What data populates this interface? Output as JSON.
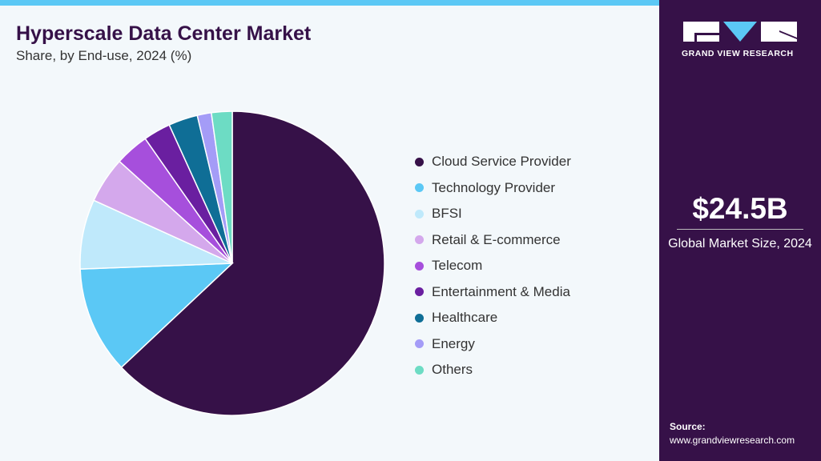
{
  "header": {
    "title": "Hyperscale Data Center Market",
    "subtitle": "Share, by End-use, 2024 (%)"
  },
  "chart_data": {
    "type": "pie",
    "title": "Hyperscale Data Center Market",
    "subtitle": "Share, by End-use, 2024 (%)",
    "legend_position": "right",
    "categories": [
      "Cloud Service Provider",
      "Technology Provider",
      "BFSI",
      "Retail & E-commerce",
      "Telecom",
      "Entertainment & Media",
      "Healthcare",
      "Energy",
      "Others"
    ],
    "values": [
      63.0,
      11.4,
      7.4,
      4.9,
      3.6,
      2.9,
      3.1,
      1.5,
      2.2
    ],
    "colors": [
      "#361148",
      "#5bc8f5",
      "#bfe9fb",
      "#d4a8ec",
      "#a64fdc",
      "#6a1fa0",
      "#0f6e96",
      "#a49cf7",
      "#6ddcc4"
    ]
  },
  "sidebar": {
    "brand": "GRAND VIEW RESEARCH",
    "market_size": "$24.5B",
    "market_label": "Global Market Size, 2024",
    "source_label": "Source:",
    "source_url": "www.grandviewresearch.com"
  }
}
